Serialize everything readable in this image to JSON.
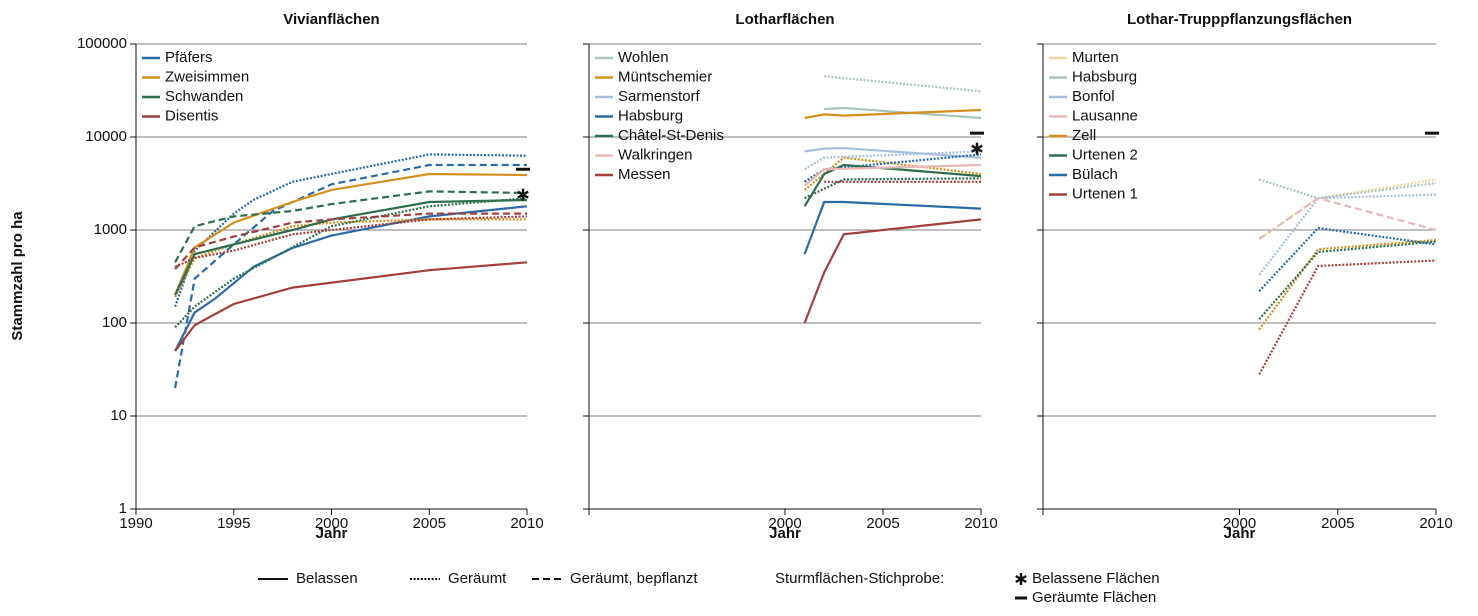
{
  "chart_data": [
    {
      "type": "line",
      "title": "Vivianflächen",
      "x_label": "Jahr",
      "y_label": "Stammzahl pro ha",
      "log_scale": true,
      "grid": true,
      "show_ytick_labels": true,
      "xlim": [
        1990,
        2010
      ],
      "xticks": [
        1990,
        1995,
        2000,
        2005,
        2010
      ],
      "ylim": [
        1,
        100000
      ],
      "yticks": [
        1,
        10,
        100,
        1000,
        {
          "value": 10000,
          "label": "10000"
        },
        {
          "value": 100000,
          "label": "100000"
        }
      ],
      "series": [
        {
          "name": "Pfäfers",
          "color": "#2a6aa6",
          "lines": [
            {
              "treatment": "solid",
              "x": [
                1992,
                1993,
                1994,
                1996,
                1998,
                2000,
                2005,
                2010
              ],
              "values": [
                50,
                130,
                180,
                400,
                640,
                870,
                1400,
                1800
              ]
            },
            {
              "treatment": "dotted",
              "x": [
                1992,
                1993,
                1995,
                1996,
                1998,
                2000,
                2005,
                2010
              ],
              "values": [
                150,
                600,
                1500,
                2100,
                3300,
                4000,
                6500,
                6300
              ]
            },
            {
              "treatment": "dashed",
              "x": [
                1992,
                1993,
                1995,
                1997,
                2000,
                2005,
                2010
              ],
              "values": [
                20,
                300,
                700,
                1600,
                3100,
                5000,
                5000
              ]
            }
          ]
        },
        {
          "name": "Zweisimmen",
          "color": "#d4901c",
          "lines": [
            {
              "treatment": "solid",
              "x": [
                1992,
                1993,
                1995,
                1998,
                2000,
                2005,
                2010
              ],
              "values": [
                200,
                650,
                1200,
                2000,
                2700,
                4000,
                3900
              ]
            },
            {
              "treatment": "dotted",
              "x": [
                1992,
                1993,
                1995,
                1998,
                2000,
                2005,
                2010
              ],
              "values": [
                190,
                500,
                700,
                1100,
                1200,
                1300,
                1300
              ]
            }
          ]
        },
        {
          "name": "Schwanden",
          "color": "#2e6e4e",
          "lines": [
            {
              "treatment": "solid",
              "x": [
                1992,
                1993,
                1995,
                1998,
                2000,
                2005,
                2010
              ],
              "values": [
                200,
                550,
                700,
                1000,
                1300,
                2000,
                2100
              ]
            },
            {
              "treatment": "dotted",
              "x": [
                1992,
                1993,
                1995,
                1998,
                2000,
                2005,
                2010
              ],
              "values": [
                90,
                150,
                300,
                650,
                1100,
                1800,
                2200
              ]
            },
            {
              "treatment": "dashed",
              "x": [
                1992,
                1993,
                1995,
                1998,
                2000,
                2005,
                2010
              ],
              "values": [
                450,
                1100,
                1400,
                1600,
                1900,
                2600,
                2500
              ]
            }
          ]
        },
        {
          "name": "Disentis",
          "color": "#a33f3f",
          "lines": [
            {
              "treatment": "solid",
              "x": [
                1992,
                1993,
                1995,
                1998,
                2005,
                2010
              ],
              "values": [
                50,
                95,
                160,
                240,
                370,
                450
              ]
            },
            {
              "treatment": "dotted",
              "x": [
                1992,
                1993,
                1995,
                1998,
                2000,
                2005,
                2010
              ],
              "values": [
                400,
                500,
                600,
                900,
                1000,
                1300,
                1400
              ]
            },
            {
              "treatment": "dashed",
              "x": [
                1992,
                1993,
                1995,
                1998,
                2000,
                2005,
                2010
              ],
              "values": [
                380,
                650,
                850,
                1200,
                1300,
                1500,
                1500
              ]
            }
          ]
        }
      ],
      "samples": [
        {
          "symbol": "dash",
          "x": 2010,
          "value": 4500
        },
        {
          "symbol": "asterisk",
          "x": 2010,
          "value": 2400
        }
      ]
    },
    {
      "type": "line",
      "title": "Lotharflächen",
      "x_label": "Jahr",
      "log_scale": true,
      "grid": true,
      "show_ytick_labels": false,
      "xlim": [
        1990,
        2010
      ],
      "xticks": [
        2000,
        2005,
        2010
      ],
      "ylim": [
        1,
        100000
      ],
      "yticks": [
        1,
        10,
        100,
        1000,
        10000,
        100000
      ],
      "series": [
        {
          "name": "Wohlen",
          "color": "#a9c4b8",
          "lines": [
            {
              "treatment": "solid",
              "x": [
                2002,
                2003,
                2010
              ],
              "values": [
                20000,
                20500,
                16000
              ]
            },
            {
              "treatment": "dotted",
              "x": [
                2002,
                2010
              ],
              "values": [
                45000,
                31000
              ]
            }
          ]
        },
        {
          "name": "Müntschemier",
          "color": "#d4901c",
          "lines": [
            {
              "treatment": "solid",
              "x": [
                2001,
                2002,
                2003,
                2010
              ],
              "values": [
                16000,
                17500,
                17000,
                19500
              ]
            },
            {
              "treatment": "dotted",
              "x": [
                2001,
                2003,
                2010
              ],
              "values": [
                2700,
                6000,
                4000
              ]
            }
          ]
        },
        {
          "name": "Sarmenstorf",
          "color": "#a8bfdc",
          "lines": [
            {
              "treatment": "solid",
              "x": [
                2001,
                2002,
                2003,
                2010
              ],
              "values": [
                7000,
                7500,
                7600,
                6000
              ]
            },
            {
              "treatment": "dotted",
              "x": [
                2001,
                2002,
                2010
              ],
              "values": [
                4500,
                6000,
                7000
              ]
            }
          ]
        },
        {
          "name": "Habsburg",
          "color": "#2a6aa6",
          "lines": [
            {
              "treatment": "solid",
              "x": [
                2001,
                2002,
                2003,
                2010
              ],
              "values": [
                550,
                2000,
                2000,
                1700
              ]
            },
            {
              "treatment": "dotted",
              "x": [
                2001,
                2002,
                2010
              ],
              "values": [
                3300,
                4500,
                6500
              ]
            }
          ]
        },
        {
          "name": "Châtel-St-Denis",
          "color": "#2e6e4e",
          "lines": [
            {
              "treatment": "solid",
              "x": [
                2001,
                2002,
                2003,
                2010
              ],
              "values": [
                1800,
                4000,
                5000,
                3800
              ]
            },
            {
              "treatment": "dotted",
              "x": [
                2001,
                2003,
                2010
              ],
              "values": [
                2200,
                3500,
                3600
              ]
            }
          ]
        },
        {
          "name": "Walkringen",
          "color": "#e8b8b8",
          "lines": [
            {
              "treatment": "solid",
              "x": [
                2001,
                2002,
                2010
              ],
              "values": [
                3000,
                4500,
                5000
              ]
            }
          ]
        },
        {
          "name": "Messen",
          "color": "#a33f3f",
          "lines": [
            {
              "treatment": "solid",
              "x": [
                2001,
                2002,
                2003,
                2010
              ],
              "values": [
                100,
                350,
                900,
                1300
              ]
            },
            {
              "treatment": "dotted",
              "x": [
                2002,
                2010
              ],
              "values": [
                3300,
                3300
              ]
            }
          ]
        }
      ],
      "samples": [
        {
          "symbol": "dash",
          "x": 2010,
          "value": 11000
        },
        {
          "symbol": "asterisk",
          "x": 2010,
          "value": 7500
        }
      ]
    },
    {
      "type": "line",
      "title": "Lothar-Trupppflanzungsflächen",
      "x_label": "Jahr",
      "log_scale": true,
      "grid": true,
      "show_ytick_labels": false,
      "xlim": [
        1990,
        2010
      ],
      "xticks": [
        2000,
        2005,
        2010
      ],
      "ylim": [
        1,
        100000
      ],
      "yticks": [
        1,
        10,
        100,
        1000,
        10000,
        100000
      ],
      "series": [
        {
          "name": "Murten",
          "color": "#f2d4a0",
          "lines": [
            {
              "treatment": "dotted",
              "x": [
                2001,
                2004,
                2010
              ],
              "values": [
                800,
                2200,
                3500
              ]
            }
          ]
        },
        {
          "name": "Habsburg",
          "color": "#a9c4b8",
          "lines": [
            {
              "treatment": "dotted",
              "x": [
                2001,
                2004,
                2010
              ],
              "values": [
                3500,
                2200,
                3200
              ]
            }
          ]
        },
        {
          "name": "Bonfol",
          "color": "#a8bfdc",
          "lines": [
            {
              "treatment": "dotted",
              "x": [
                2001,
                2004,
                2010
              ],
              "values": [
                330,
                2200,
                2400
              ]
            }
          ]
        },
        {
          "name": "Lausanne",
          "color": "#e8b8b8",
          "lines": [
            {
              "treatment": "dashed",
              "x": [
                2001,
                2004,
                2010
              ],
              "values": [
                800,
                2200,
                1000
              ]
            }
          ]
        },
        {
          "name": "Zell",
          "color": "#d4901c",
          "lines": [
            {
              "treatment": "dotted",
              "x": [
                2001,
                2004,
                2010
              ],
              "values": [
                85,
                620,
                780
              ]
            }
          ]
        },
        {
          "name": "Urtenen 2",
          "color": "#2e6e4e",
          "lines": [
            {
              "treatment": "dotted",
              "x": [
                2001,
                2004,
                2010
              ],
              "values": [
                110,
                580,
                750
              ]
            }
          ]
        },
        {
          "name": "Bülach",
          "color": "#2a6aa6",
          "lines": [
            {
              "treatment": "dotted",
              "x": [
                2001,
                2004,
                2010
              ],
              "values": [
                220,
                1050,
                700
              ]
            }
          ]
        },
        {
          "name": "Urtenen 1",
          "color": "#a33f3f",
          "lines": [
            {
              "treatment": "dotted",
              "x": [
                2001,
                2004,
                2010
              ],
              "values": [
                28,
                410,
                470
              ]
            }
          ]
        }
      ],
      "samples": [
        {
          "symbol": "dash",
          "x": 2010,
          "value": 11000
        }
      ]
    }
  ],
  "legend": {
    "line_styles": [
      {
        "label": "Belassen",
        "dash": "solid"
      },
      {
        "label": "Geräumt",
        "dash": "dotted"
      },
      {
        "label": "Geräumt, bepflanzt",
        "dash": "dashed"
      }
    ],
    "sample_title": "Sturmflächen-Stichprobe:",
    "sample_symbols": [
      {
        "symbol": "asterisk",
        "label": "Belassene Flächen"
      },
      {
        "symbol": "dash",
        "label": "Geräumte Flächen"
      }
    ]
  }
}
